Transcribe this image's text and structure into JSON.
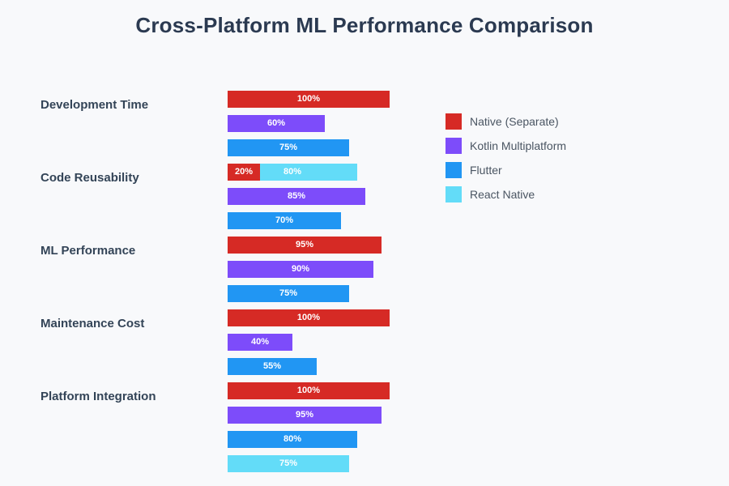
{
  "title": "Cross-Platform ML Performance Comparison",
  "colors": {
    "background": "#f8f9fb",
    "title_text": "#2b3a51",
    "category_text": "#334457",
    "legend_text": "#4a5562",
    "bar_label_text": "#ffffff",
    "native": "#d62a25",
    "kotlin": "#7d4cfa",
    "flutter": "#2196f3",
    "react_native": "#63dcf8"
  },
  "legend": {
    "items": [
      {
        "series": "native",
        "label": "Native (Separate)"
      },
      {
        "series": "kotlin",
        "label": "Kotlin Multiplatform"
      },
      {
        "series": "flutter",
        "label": "Flutter"
      },
      {
        "series": "react_native",
        "label": "React Native"
      }
    ]
  },
  "chart_data": {
    "type": "bar",
    "orientation": "horizontal",
    "title": "Cross-Platform ML Performance Comparison",
    "value_unit": "%",
    "value_range": [
      0,
      100
    ],
    "grid": false,
    "axes_visible": false,
    "legend_position": "right",
    "bar_value_labels": "inside-center-white",
    "categories": [
      "Development Time",
      "Code Reusability",
      "ML Performance",
      "Maintenance Cost",
      "Platform Integration"
    ],
    "series": [
      {
        "name": "Native (Separate)",
        "color": "#d62a25",
        "values": [
          100,
          20,
          95,
          100,
          100
        ]
      },
      {
        "name": "Kotlin Multiplatform",
        "color": "#7d4cfa",
        "values": [
          60,
          85,
          90,
          40,
          95
        ]
      },
      {
        "name": "Flutter",
        "color": "#2196f3",
        "values": [
          75,
          70,
          75,
          55,
          80
        ]
      },
      {
        "name": "React Native",
        "color": "#63dcf8",
        "values": [
          null,
          80,
          null,
          null,
          75
        ]
      }
    ]
  },
  "groups": [
    {
      "label": "Development Time",
      "rows": [
        {
          "bars": [
            {
              "series": "native",
              "pct": 100,
              "label": "100%"
            }
          ]
        },
        {
          "bars": [
            {
              "series": "kotlin",
              "pct": 60,
              "label": "60%"
            }
          ]
        },
        {
          "bars": [
            {
              "series": "flutter",
              "pct": 75,
              "label": "75%"
            }
          ]
        }
      ]
    },
    {
      "label": "Code Reusability",
      "rows": [
        {
          "bars": [
            {
              "series": "react_native",
              "pct": 80,
              "label": "80%"
            },
            {
              "series": "native",
              "pct": 20,
              "label": "20%"
            }
          ]
        },
        {
          "bars": [
            {
              "series": "kotlin",
              "pct": 85,
              "label": "85%"
            }
          ]
        },
        {
          "bars": [
            {
              "series": "flutter",
              "pct": 70,
              "label": "70%"
            }
          ]
        }
      ]
    },
    {
      "label": "ML Performance",
      "rows": [
        {
          "bars": [
            {
              "series": "native",
              "pct": 95,
              "label": "95%"
            }
          ]
        },
        {
          "bars": [
            {
              "series": "kotlin",
              "pct": 90,
              "label": "90%"
            }
          ]
        },
        {
          "bars": [
            {
              "series": "flutter",
              "pct": 75,
              "label": "75%"
            }
          ]
        }
      ]
    },
    {
      "label": "Maintenance Cost",
      "rows": [
        {
          "bars": [
            {
              "series": "native",
              "pct": 100,
              "label": "100%"
            }
          ]
        },
        {
          "bars": [
            {
              "series": "kotlin",
              "pct": 40,
              "label": "40%"
            }
          ]
        },
        {
          "bars": [
            {
              "series": "flutter",
              "pct": 55,
              "label": "55%"
            }
          ]
        }
      ]
    },
    {
      "label": "Platform Integration",
      "rows": [
        {
          "bars": [
            {
              "series": "native",
              "pct": 100,
              "label": "100%"
            }
          ]
        },
        {
          "bars": [
            {
              "series": "kotlin",
              "pct": 95,
              "label": "95%"
            }
          ]
        },
        {
          "bars": [
            {
              "series": "flutter",
              "pct": 80,
              "label": "80%"
            }
          ]
        },
        {
          "bars": [
            {
              "series": "react_native",
              "pct": 75,
              "label": "75%"
            }
          ]
        }
      ]
    }
  ]
}
